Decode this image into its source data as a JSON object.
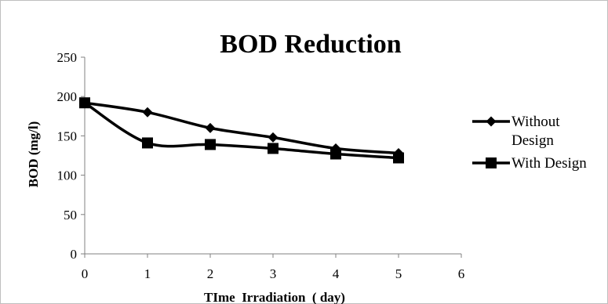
{
  "chart_data": {
    "type": "line",
    "title": "BOD Reduction",
    "xlabel": "TIme  Irradiation  ( day)",
    "ylabel": "BOD (mg/l)",
    "xlim": [
      0,
      6
    ],
    "ylim": [
      0,
      250
    ],
    "x_ticks": [
      "0",
      "1",
      "2",
      "3",
      "4",
      "5",
      "6"
    ],
    "y_ticks": [
      "0",
      "50",
      "100",
      "150",
      "200",
      "250"
    ],
    "grid": false,
    "legend_position": "right",
    "series": [
      {
        "name": "Without Design",
        "legend_lines": [
          "Without",
          "Design"
        ],
        "marker": "diamond",
        "color": "#000000",
        "x": [
          0,
          1,
          2,
          3,
          4,
          5
        ],
        "y": [
          192,
          180,
          160,
          148,
          134,
          128
        ]
      },
      {
        "name": "With Design",
        "legend_lines": [
          "With Design"
        ],
        "marker": "square",
        "color": "#000000",
        "x": [
          0,
          1,
          2,
          3,
          4,
          5
        ],
        "y": [
          192,
          141,
          139,
          134,
          127,
          122
        ]
      }
    ]
  }
}
